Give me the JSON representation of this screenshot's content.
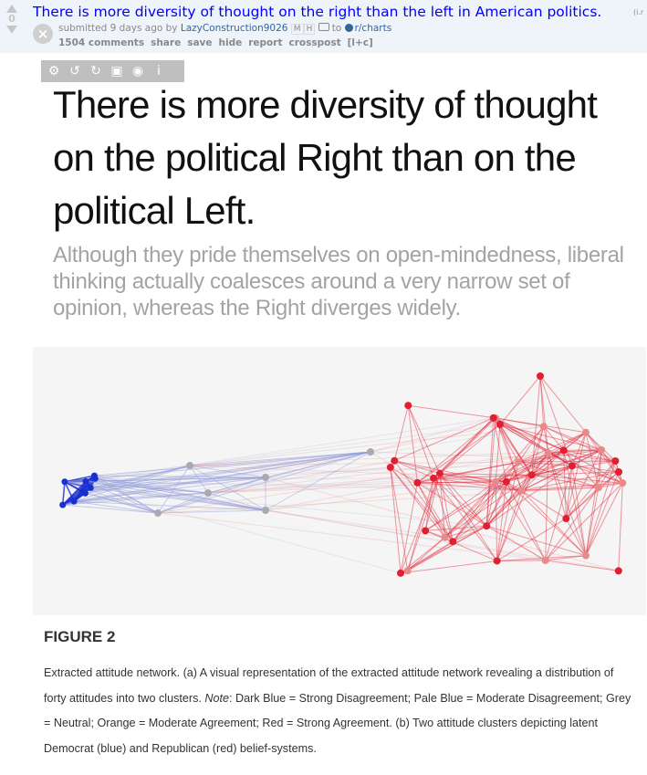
{
  "post": {
    "title": "There is more diversity of thought on the right than the left in American politics.",
    "domain": "(i.r",
    "score": "0",
    "tagline": {
      "submitted": "submitted 9 days ago by",
      "author": "LazyConstruction9026",
      "flair_m": "M",
      "flair_h": "H",
      "to": "to",
      "subreddit": "r/charts"
    },
    "buttons": [
      "1504 comments",
      "share",
      "save",
      "hide",
      "report",
      "crosspost",
      "[l+c]"
    ]
  },
  "image_toolbar": {
    "icons": [
      "gear-icon",
      "rotate-left-icon",
      "rotate-right-icon",
      "save-icon",
      "eye-icon",
      "info-icon"
    ]
  },
  "image": {
    "headline": "There is more diversity of thought on the political Right than on the political Left.",
    "subhead": "Although they pride themselves on open-mindedness, liberal thinking actually coalesces around a very narrow set of opinion, whereas the Right diverges widely.",
    "figure_label": "FIGURE 2",
    "caption_1": "Extracted attitude network. (a) A visual representation of the extracted attitude network revealing a distribution of forty attitudes into two clusters. ",
    "caption_note": "Note",
    "caption_2": ": Dark Blue = Strong Disagreement; Pale Blue = Moderate Disagreement; Grey = Neutral; Orange = Moderate Agreement; Red = Strong Agreement. (b) Two attitude clusters depicting latent Democrat (blue) and Republican (red) belief-systems."
  },
  "network_colors": {
    "dark_blue": "#1a2fd0",
    "pale_blue": "#8f9ad8",
    "grey": "#a9a9b2",
    "orange": "#e98a8a",
    "red": "#e02030"
  }
}
